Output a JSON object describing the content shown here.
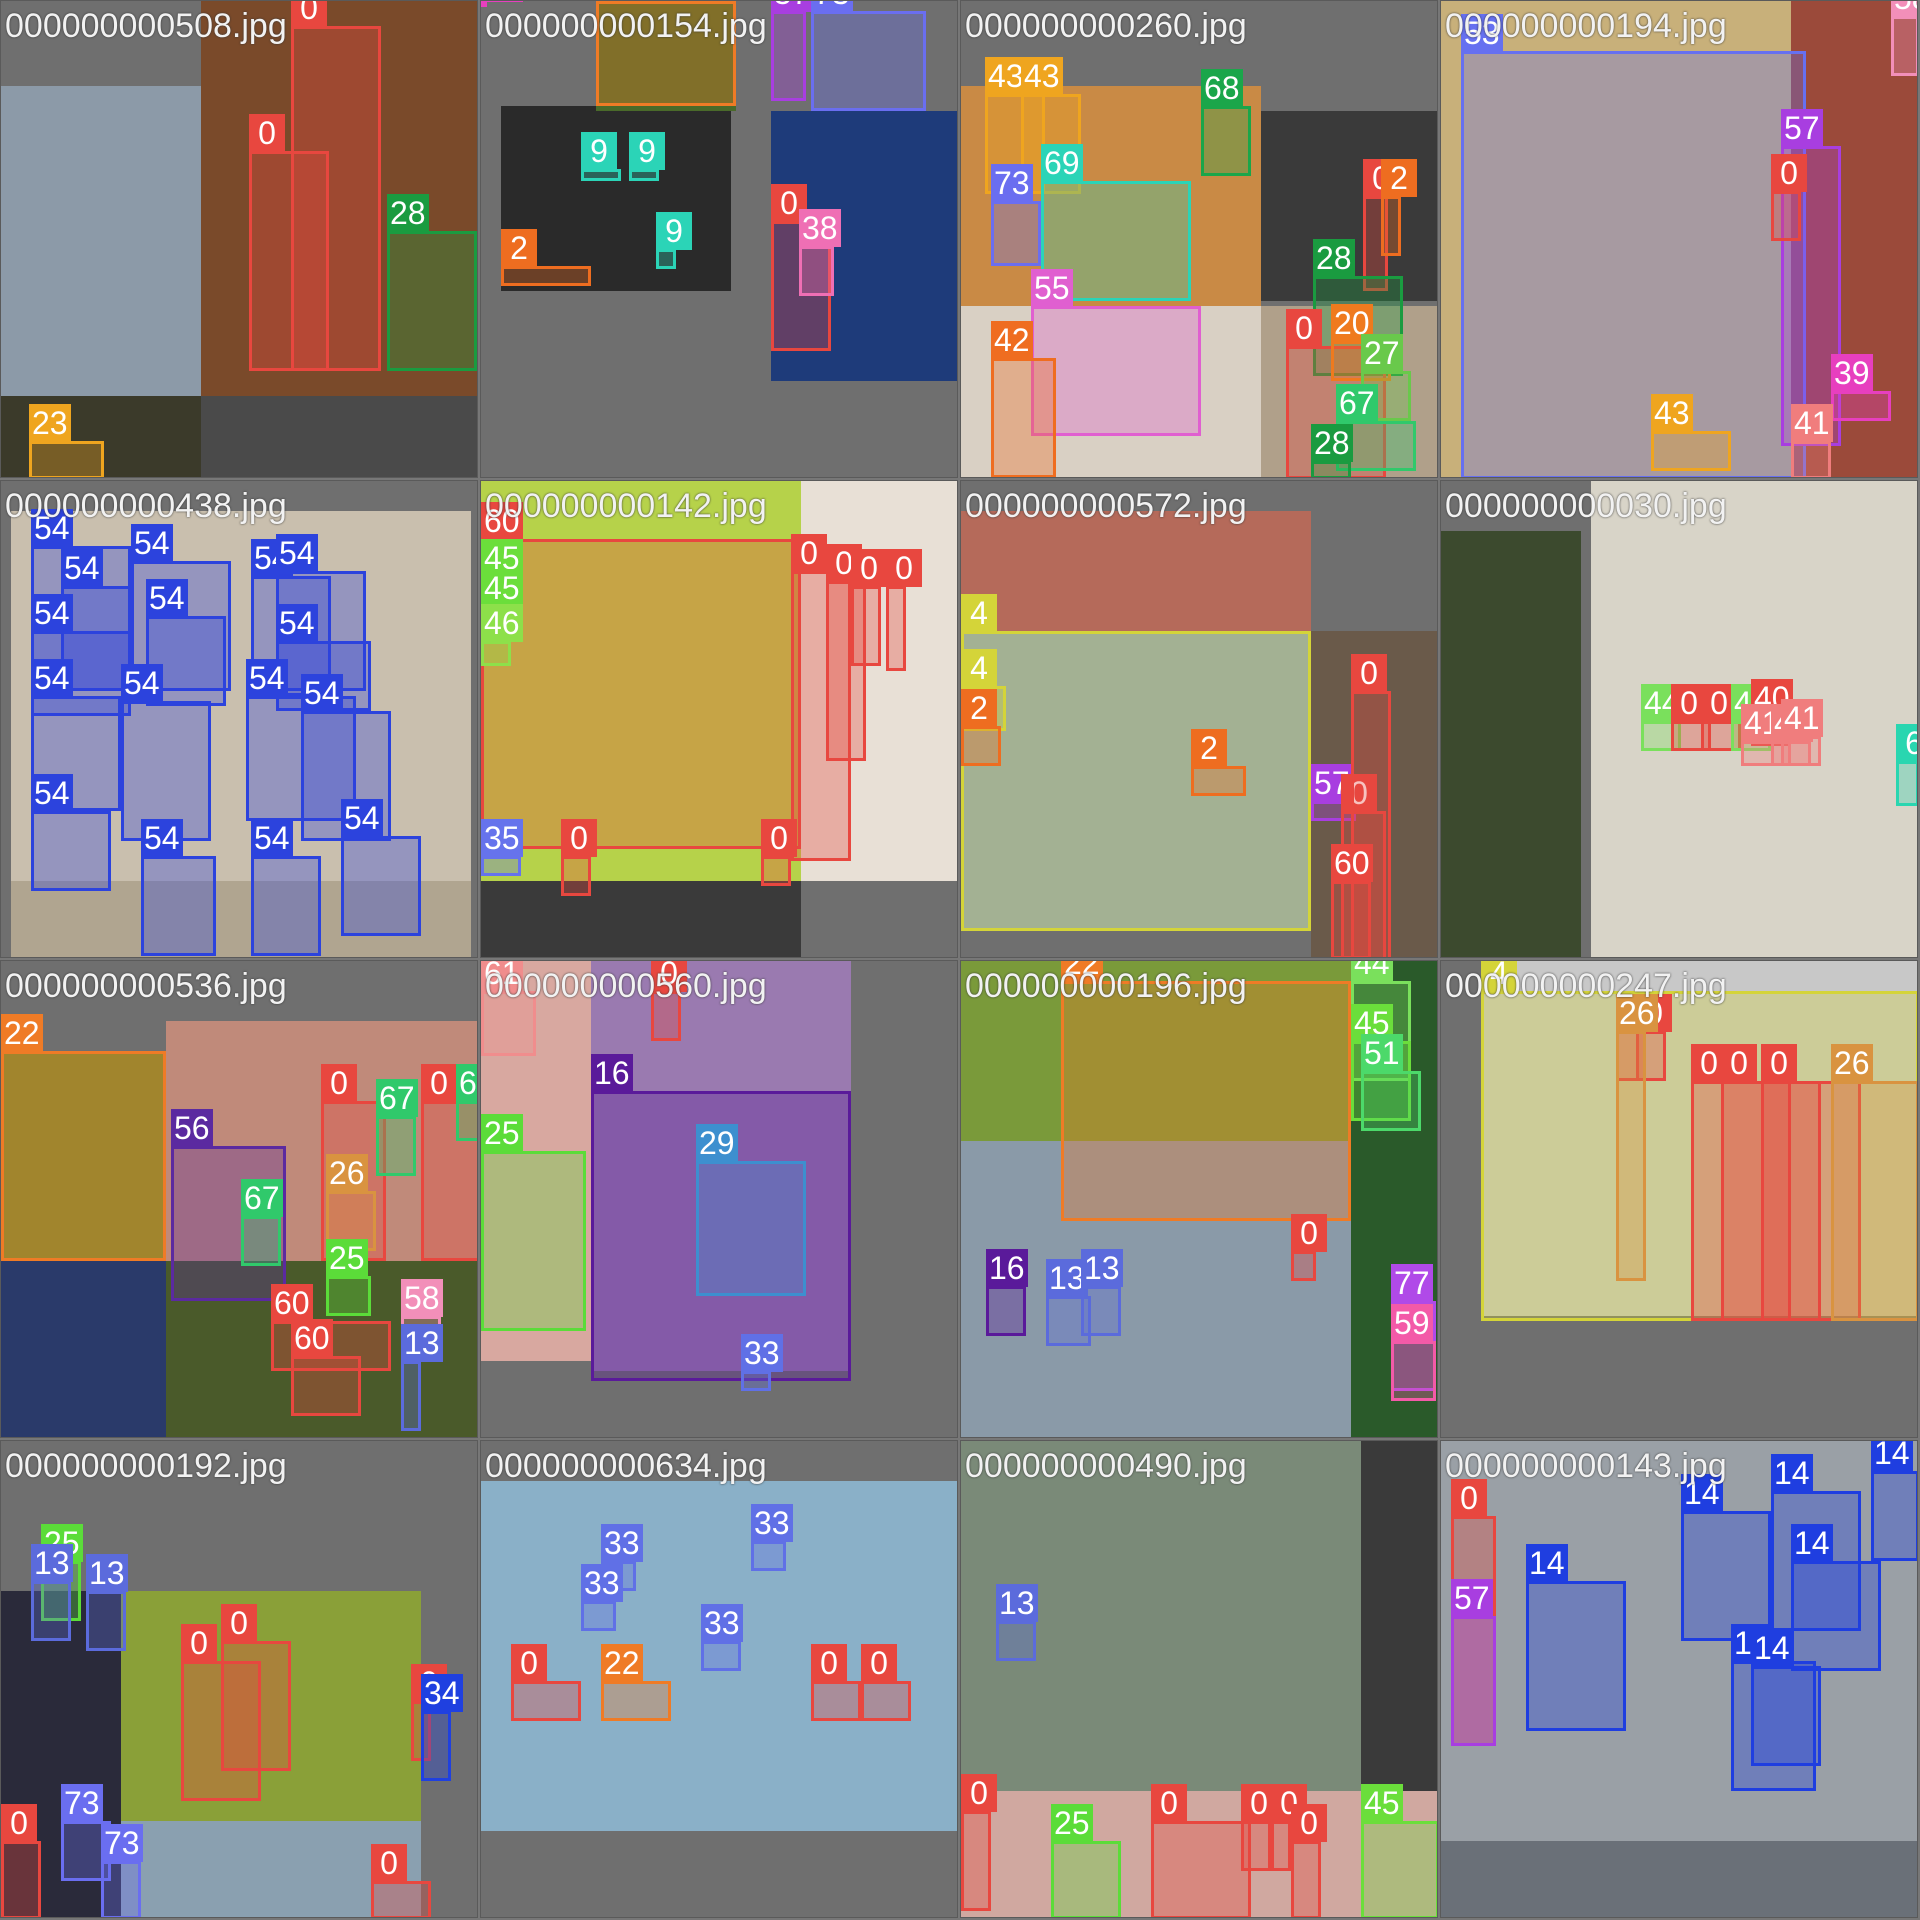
{
  "title": "mosaic",
  "tiles": [
    {
      "file": "000000000508.jpg",
      "dets": [
        {
          "c": "0"
        },
        {
          "c": "0"
        },
        {
          "c": "28"
        },
        {
          "c": "23"
        }
      ]
    },
    {
      "file": "000000000154.jpg",
      "dets": [
        {
          "c": "22"
        },
        {
          "c": "57"
        },
        {
          "c": "73"
        },
        {
          "c": "9"
        },
        {
          "c": "9"
        },
        {
          "c": "9"
        },
        {
          "c": "2"
        },
        {
          "c": "0"
        },
        {
          "c": "38"
        },
        {
          "c": "39"
        }
      ]
    },
    {
      "file": "000000000260.jpg",
      "dets": [
        {
          "c": "43"
        },
        {
          "c": "43"
        },
        {
          "c": "68"
        },
        {
          "c": "69"
        },
        {
          "c": "73"
        },
        {
          "c": "55"
        },
        {
          "c": "42"
        },
        {
          "c": "0"
        },
        {
          "c": "2"
        },
        {
          "c": "28"
        },
        {
          "c": "0"
        },
        {
          "c": "20"
        },
        {
          "c": "27"
        },
        {
          "c": "67"
        },
        {
          "c": "28"
        }
      ]
    },
    {
      "file": "000000000194.jpg",
      "dets": [
        {
          "c": "53"
        },
        {
          "c": "57"
        },
        {
          "c": "0"
        },
        {
          "c": "43"
        },
        {
          "c": "39"
        },
        {
          "c": "41"
        },
        {
          "c": "58"
        }
      ]
    },
    {
      "file": "000000000438.jpg",
      "dets": [
        {
          "c": "54"
        },
        {
          "c": "54"
        },
        {
          "c": "54"
        },
        {
          "c": "54"
        },
        {
          "c": "54"
        },
        {
          "c": "54"
        },
        {
          "c": "54"
        },
        {
          "c": "54"
        },
        {
          "c": "54"
        },
        {
          "c": "54"
        },
        {
          "c": "54"
        },
        {
          "c": "54"
        },
        {
          "c": "54"
        },
        {
          "c": "54"
        },
        {
          "c": "54"
        },
        {
          "c": "54"
        }
      ]
    },
    {
      "file": "000000000142.jpg",
      "dets": [
        {
          "c": "60"
        },
        {
          "c": "45"
        },
        {
          "c": "45"
        },
        {
          "c": "46"
        },
        {
          "c": "0"
        },
        {
          "c": "0"
        },
        {
          "c": "0"
        },
        {
          "c": "0"
        },
        {
          "c": "35"
        },
        {
          "c": "0"
        },
        {
          "c": "0"
        }
      ]
    },
    {
      "file": "000000000572.jpg",
      "dets": [
        {
          "c": "4"
        },
        {
          "c": "4"
        },
        {
          "c": "2"
        },
        {
          "c": "2"
        },
        {
          "c": "57"
        },
        {
          "c": "0"
        },
        {
          "c": "0"
        },
        {
          "c": "60"
        }
      ]
    },
    {
      "file": "000000000030.jpg",
      "dets": [
        {
          "c": "44"
        },
        {
          "c": "0"
        },
        {
          "c": "0"
        },
        {
          "c": "44"
        },
        {
          "c": "40"
        },
        {
          "c": "41"
        },
        {
          "c": "41"
        },
        {
          "c": "41"
        },
        {
          "c": "6"
        }
      ]
    },
    {
      "file": "000000000536.jpg",
      "dets": [
        {
          "c": "22"
        },
        {
          "c": "56"
        },
        {
          "c": "0"
        },
        {
          "c": "67"
        },
        {
          "c": "0"
        },
        {
          "c": "67"
        },
        {
          "c": "26"
        },
        {
          "c": "67"
        },
        {
          "c": "25"
        },
        {
          "c": "60"
        },
        {
          "c": "60"
        },
        {
          "c": "58"
        },
        {
          "c": "13"
        }
      ]
    },
    {
      "file": "000000000560.jpg",
      "dets": [
        {
          "c": "61"
        },
        {
          "c": "0"
        },
        {
          "c": "16"
        },
        {
          "c": "25"
        },
        {
          "c": "29"
        },
        {
          "c": "33"
        }
      ]
    },
    {
      "file": "000000000196.jpg",
      "dets": [
        {
          "c": "22"
        },
        {
          "c": "44"
        },
        {
          "c": "45"
        },
        {
          "c": "51"
        },
        {
          "c": "0"
        },
        {
          "c": "16"
        },
        {
          "c": "13"
        },
        {
          "c": "13"
        },
        {
          "c": "77"
        },
        {
          "c": "59"
        }
      ]
    },
    {
      "file": "000000000247.jpg",
      "dets": [
        {
          "c": "4"
        },
        {
          "c": "0"
        },
        {
          "c": "0"
        },
        {
          "c": "26"
        },
        {
          "c": "0"
        },
        {
          "c": "0"
        },
        {
          "c": "0"
        },
        {
          "c": "26"
        }
      ]
    },
    {
      "file": "000000000192.jpg",
      "dets": [
        {
          "c": "25"
        },
        {
          "c": "13"
        },
        {
          "c": "13"
        },
        {
          "c": "0"
        },
        {
          "c": "0"
        },
        {
          "c": "0"
        },
        {
          "c": "34"
        },
        {
          "c": "73"
        },
        {
          "c": "73"
        },
        {
          "c": "0"
        },
        {
          "c": "0"
        }
      ]
    },
    {
      "file": "000000000634.jpg",
      "dets": [
        {
          "c": "33"
        },
        {
          "c": "33"
        },
        {
          "c": "33"
        },
        {
          "c": "33"
        },
        {
          "c": "0"
        },
        {
          "c": "22"
        },
        {
          "c": "0"
        },
        {
          "c": "0"
        }
      ]
    },
    {
      "file": "000000000490.jpg",
      "dets": [
        {
          "c": "0"
        },
        {
          "c": "13"
        },
        {
          "c": "45"
        },
        {
          "c": "0"
        },
        {
          "c": "25"
        },
        {
          "c": "0"
        },
        {
          "c": "0"
        },
        {
          "c": "0"
        }
      ]
    },
    {
      "file": "000000000143.jpg",
      "dets": [
        {
          "c": "14"
        },
        {
          "c": "14"
        },
        {
          "c": "14"
        },
        {
          "c": "14"
        },
        {
          "c": "14"
        },
        {
          "c": "14"
        },
        {
          "c": "14"
        },
        {
          "c": "0"
        },
        {
          "c": "57"
        }
      ]
    }
  ]
}
